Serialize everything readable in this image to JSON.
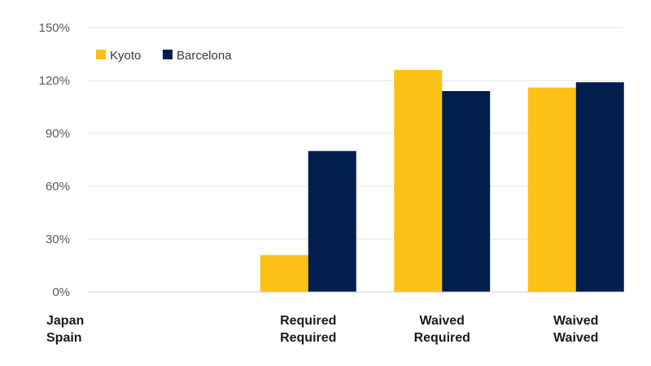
{
  "chart_data": {
    "type": "bar",
    "row_labels": [
      "Japan",
      "Spain"
    ],
    "categories": [
      {
        "line1": "",
        "line2": ""
      },
      {
        "line1": "Required",
        "line2": "Required"
      },
      {
        "line1": "Waived",
        "line2": "Required"
      },
      {
        "line1": "Waived",
        "line2": "Waived"
      }
    ],
    "series": [
      {
        "name": "Kyoto",
        "color": "#FCC116",
        "values": [
          0,
          21,
          126,
          116
        ]
      },
      {
        "name": "Barcelona",
        "color": "#021E4D",
        "values": [
          0,
          80,
          114,
          119
        ]
      }
    ],
    "ylim": [
      0,
      150
    ],
    "yticks": [
      0,
      30,
      60,
      90,
      120,
      150
    ],
    "ytick_labels": [
      "0%",
      "30%",
      "60%",
      "90%",
      "120%",
      "150%"
    ],
    "grid": true,
    "legend_position": "top-left",
    "title": "",
    "xlabel": "",
    "ylabel": ""
  }
}
